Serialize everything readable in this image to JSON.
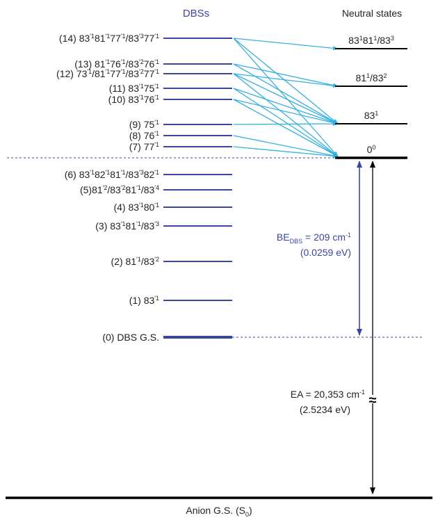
{
  "headers": {
    "dbs": "DBSs",
    "neutral": "Neutral states"
  },
  "dbs_levels": [
    {
      "id": 14,
      "label": [
        [
          "(14) 83",
          ""
        ],
        [
          "′1",
          "sup"
        ],
        [
          "81",
          ""
        ],
        [
          "′1",
          "sup"
        ],
        [
          "77",
          ""
        ],
        [
          "′1",
          "sup"
        ],
        [
          "/83",
          ""
        ],
        [
          "′3",
          "sup"
        ],
        [
          "77",
          ""
        ],
        [
          "′1",
          "sup"
        ]
      ],
      "energy_cm": 1490
    },
    {
      "id": 13,
      "label": [
        [
          "(13) 81",
          ""
        ],
        [
          "′1",
          "sup"
        ],
        [
          "76",
          ""
        ],
        [
          "′1",
          "sup"
        ],
        [
          "/83",
          ""
        ],
        [
          "′2",
          "sup"
        ],
        [
          "76",
          ""
        ],
        [
          "′1",
          "sup"
        ]
      ],
      "energy_cm": 1375
    },
    {
      "id": 12,
      "label": [
        [
          "(12) 73",
          ""
        ],
        [
          "′1",
          "sup"
        ],
        [
          "/81",
          ""
        ],
        [
          "′1",
          "sup"
        ],
        [
          "77",
          ""
        ],
        [
          "′1",
          "sup"
        ],
        [
          "/83",
          ""
        ],
        [
          "′2",
          "sup"
        ],
        [
          "77",
          ""
        ],
        [
          "′1",
          "sup"
        ]
      ],
      "energy_cm": 1343
    },
    {
      "id": 11,
      "label": [
        [
          "(11) 83",
          ""
        ],
        [
          "′1",
          "sup"
        ],
        [
          "75",
          ""
        ],
        [
          "′1",
          "sup"
        ]
      ],
      "energy_cm": 1287
    },
    {
      "id": 10,
      "label": [
        [
          "(10) 83",
          ""
        ],
        [
          "′1",
          "sup"
        ],
        [
          "76",
          ""
        ],
        [
          "′1",
          "sup"
        ]
      ],
      "energy_cm": 1255
    },
    {
      "id": 9,
      "label": [
        [
          "(9) 75",
          ""
        ],
        [
          "′1",
          "sup"
        ]
      ],
      "energy_cm": 1083
    },
    {
      "id": 8,
      "label": [
        [
          "(8) 76",
          ""
        ],
        [
          "′1",
          "sup"
        ]
      ],
      "energy_cm": 1016
    },
    {
      "id": 7,
      "label": [
        [
          "(7) 77",
          ""
        ],
        [
          "′1",
          "sup"
        ]
      ],
      "energy_cm": 953
    },
    {
      "id": 6,
      "label": [
        [
          "(6) 83",
          ""
        ],
        [
          "′1",
          "sup"
        ],
        [
          "82",
          ""
        ],
        [
          "′1",
          "sup"
        ],
        [
          "81",
          ""
        ],
        [
          "′1",
          "sup"
        ],
        [
          "/83",
          ""
        ],
        [
          "′3",
          "sup"
        ],
        [
          "82",
          ""
        ],
        [
          "′1",
          "sup"
        ]
      ],
      "energy_cm": 777
    },
    {
      "id": 5,
      "label": [
        [
          "(5)81",
          ""
        ],
        [
          "′2",
          "sup"
        ],
        [
          "/83",
          ""
        ],
        [
          "′2",
          "sup"
        ],
        [
          "81",
          ""
        ],
        [
          "′1",
          "sup"
        ],
        [
          "/83",
          ""
        ],
        [
          "′4",
          "sup"
        ]
      ],
      "energy_cm": 683
    },
    {
      "id": 4,
      "label": [
        [
          "(4) 83",
          ""
        ],
        [
          "′1",
          "sup"
        ],
        [
          "80",
          ""
        ],
        [
          "′1",
          "sup"
        ]
      ],
      "energy_cm": 586
    },
    {
      "id": 3,
      "label": [
        [
          "(3) 83",
          ""
        ],
        [
          "′1",
          "sup"
        ],
        [
          "81",
          ""
        ],
        [
          "′1",
          "sup"
        ],
        [
          "/83",
          ""
        ],
        [
          "′3",
          "sup"
        ]
      ],
      "energy_cm": 460
    },
    {
      "id": 2,
      "label": [
        [
          "(2) 81",
          ""
        ],
        [
          "′1",
          "sup"
        ],
        [
          "/83",
          ""
        ],
        [
          "′2",
          "sup"
        ]
      ],
      "energy_cm": 292
    },
    {
      "id": 1,
      "label": [
        [
          "(1) 83",
          ""
        ],
        [
          "′1",
          "sup"
        ]
      ],
      "energy_cm": 0
    },
    {
      "id": 0,
      "label": [
        [
          "(0) DBS G.S.",
          ""
        ]
      ],
      "energy_cm": -209
    }
  ],
  "neutral_levels": [
    {
      "key": "n3",
      "label": [
        [
          "83",
          ""
        ],
        [
          "1",
          "sup"
        ],
        [
          "81",
          ""
        ],
        [
          "1",
          "sup"
        ],
        [
          "/83",
          ""
        ],
        [
          "3",
          "sup"
        ]
      ]
    },
    {
      "key": "n2",
      "label": [
        [
          "81",
          ""
        ],
        [
          "1",
          "sup"
        ],
        [
          "/83",
          ""
        ],
        [
          "2",
          "sup"
        ]
      ]
    },
    {
      "key": "n1",
      "label": [
        [
          "83",
          ""
        ],
        [
          "1",
          "sup"
        ]
      ]
    },
    {
      "key": "n0",
      "label": [
        [
          "0",
          ""
        ],
        [
          "0",
          "sup"
        ]
      ]
    }
  ],
  "transitions": [
    {
      "from": 14,
      "to": "n3"
    },
    {
      "from": 14,
      "to": "n1"
    },
    {
      "from": 14,
      "to": "n0"
    },
    {
      "from": 13,
      "to": "n2"
    },
    {
      "from": 13,
      "to": "n1"
    },
    {
      "from": 12,
      "to": "n2"
    },
    {
      "from": 12,
      "to": "n1"
    },
    {
      "from": 12,
      "to": "n0"
    },
    {
      "from": 11,
      "to": "n1"
    },
    {
      "from": 11,
      "to": "n0"
    },
    {
      "from": 10,
      "to": "n1"
    },
    {
      "from": 10,
      "to": "n0"
    },
    {
      "from": 9,
      "to": "n1"
    },
    {
      "from": 8,
      "to": "n0"
    },
    {
      "from": 7,
      "to": "n0"
    }
  ],
  "be_dbs": {
    "label": [
      [
        "BE",
        ""
      ],
      [
        "DBS",
        "sub"
      ],
      [
        " = 209 cm",
        ""
      ],
      [
        "-1",
        "sup"
      ]
    ],
    "ev": "(0.0259 eV)"
  },
  "ea": {
    "label": [
      [
        "EA = 20,353 cm",
        ""
      ],
      [
        "-1",
        "sup"
      ]
    ],
    "ev": "(2.5234 eV)",
    "break_symbol": "≈"
  },
  "anion_gs": {
    "label": [
      [
        "Anion G.S. (S",
        ""
      ],
      [
        "0",
        "sub"
      ],
      [
        ")",
        ""
      ]
    ]
  },
  "colors": {
    "dbs_line": "#3a45a0",
    "dbs_header": "#3a45a0",
    "arrow": "#33b0e0",
    "be_text": "#3a45a0",
    "black": "#000000",
    "dashed": "#3a45a0",
    "text": "#222222"
  }
}
